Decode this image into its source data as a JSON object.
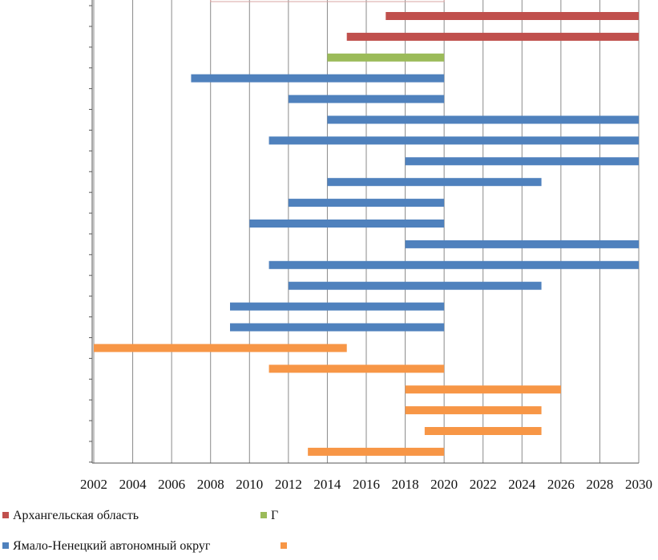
{
  "chart_data": {
    "type": "bar",
    "orientation": "horizontal-floating",
    "x_ticks": [
      "2002",
      "2004",
      "2006",
      "2008",
      "2010",
      "2012",
      "2014",
      "2016",
      "2018",
      "2020",
      "2022",
      "2024",
      "2026",
      "2028",
      "2030"
    ],
    "xlim": [
      2002,
      2030
    ],
    "grid": true,
    "legend_position": "bottom",
    "colors": {
      "red": "#c0504d",
      "green": "#9bbb59",
      "blue": "#4f81bd",
      "orange": "#f79646"
    },
    "series": [
      {
        "name": "Архангельская область",
        "color": "#c0504d"
      },
      {
        "name": "Г",
        "color": "#9bbb59"
      },
      {
        "name": "Ямало-Ненецкий автономный округ",
        "color": "#4f81bd"
      },
      {
        "name": "",
        "color": "#f79646"
      }
    ],
    "bars": [
      {
        "series": 0,
        "start": 2017,
        "end": 2030
      },
      {
        "series": 0,
        "start": 2015,
        "end": 2030
      },
      {
        "series": 1,
        "start": 2014,
        "end": 2020
      },
      {
        "series": 2,
        "start": 2007,
        "end": 2020
      },
      {
        "series": 2,
        "start": 2012,
        "end": 2020
      },
      {
        "series": 2,
        "start": 2014,
        "end": 2030
      },
      {
        "series": 2,
        "start": 2011,
        "end": 2030
      },
      {
        "series": 2,
        "start": 2018,
        "end": 2030
      },
      {
        "series": 2,
        "start": 2014,
        "end": 2025
      },
      {
        "series": 2,
        "start": 2012,
        "end": 2020
      },
      {
        "series": 2,
        "start": 2010,
        "end": 2020
      },
      {
        "series": 2,
        "start": 2018,
        "end": 2030
      },
      {
        "series": 2,
        "start": 2011,
        "end": 2030
      },
      {
        "series": 2,
        "start": 2012,
        "end": 2025
      },
      {
        "series": 2,
        "start": 2009,
        "end": 2020
      },
      {
        "series": 2,
        "start": 2009,
        "end": 2020
      },
      {
        "series": 3,
        "start": 2002,
        "end": 2015
      },
      {
        "series": 3,
        "start": 2011,
        "end": 2020
      },
      {
        "series": 3,
        "start": 2018,
        "end": 2026
      },
      {
        "series": 3,
        "start": 2018,
        "end": 2025
      },
      {
        "series": 3,
        "start": 2019,
        "end": 2025
      },
      {
        "series": 3,
        "start": 2013,
        "end": 2020
      }
    ]
  }
}
